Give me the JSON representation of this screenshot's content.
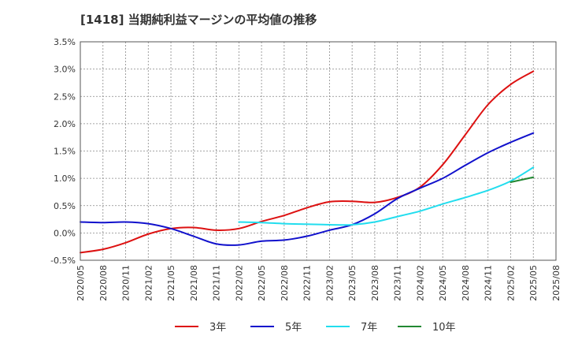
{
  "chart_data": {
    "type": "line",
    "title": "[1418]  当期純利益マージンの平均値の推移",
    "xlabel": "",
    "ylabel": "",
    "x_ticks": [
      "2020/05",
      "2020/08",
      "2020/11",
      "2021/02",
      "2021/05",
      "2021/08",
      "2021/11",
      "2022/02",
      "2022/05",
      "2022/08",
      "2022/11",
      "2023/02",
      "2023/05",
      "2023/08",
      "2023/11",
      "2024/02",
      "2024/05",
      "2024/08",
      "2024/11",
      "2025/02",
      "2025/05",
      "2025/08"
    ],
    "y_ticks": [
      "-0.5%",
      "0.0%",
      "0.5%",
      "1.0%",
      "1.5%",
      "2.0%",
      "2.5%",
      "3.0%",
      "3.5%"
    ],
    "ylim": [
      -0.5,
      3.5
    ],
    "y_unit": "%",
    "grid": true,
    "legend_position": "bottom",
    "series": [
      {
        "name": "3年",
        "color": "#dd1111",
        "points": [
          [
            "2020/05",
            -0.36
          ],
          [
            "2020/08",
            -0.3
          ],
          [
            "2020/11",
            -0.18
          ],
          [
            "2021/02",
            -0.02
          ],
          [
            "2021/05",
            0.08
          ],
          [
            "2021/08",
            0.1
          ],
          [
            "2021/11",
            0.05
          ],
          [
            "2022/02",
            0.08
          ],
          [
            "2022/05",
            0.21
          ],
          [
            "2022/08",
            0.32
          ],
          [
            "2022/11",
            0.46
          ],
          [
            "2023/02",
            0.57
          ],
          [
            "2023/05",
            0.58
          ],
          [
            "2023/08",
            0.56
          ],
          [
            "2023/11",
            0.65
          ],
          [
            "2024/02",
            0.84
          ],
          [
            "2024/05",
            1.25
          ],
          [
            "2024/08",
            1.8
          ],
          [
            "2024/11",
            2.35
          ],
          [
            "2025/02",
            2.72
          ],
          [
            "2025/05",
            2.96
          ]
        ]
      },
      {
        "name": "5年",
        "color": "#1111cc",
        "points": [
          [
            "2020/05",
            0.2
          ],
          [
            "2020/08",
            0.19
          ],
          [
            "2020/11",
            0.2
          ],
          [
            "2021/02",
            0.17
          ],
          [
            "2021/05",
            0.08
          ],
          [
            "2021/08",
            -0.06
          ],
          [
            "2021/11",
            -0.2
          ],
          [
            "2022/02",
            -0.22
          ],
          [
            "2022/05",
            -0.15
          ],
          [
            "2022/08",
            -0.13
          ],
          [
            "2022/11",
            -0.06
          ],
          [
            "2023/02",
            0.05
          ],
          [
            "2023/05",
            0.15
          ],
          [
            "2023/08",
            0.35
          ],
          [
            "2023/11",
            0.63
          ],
          [
            "2024/02",
            0.82
          ],
          [
            "2024/05",
            1.0
          ],
          [
            "2024/08",
            1.24
          ],
          [
            "2024/11",
            1.47
          ],
          [
            "2025/02",
            1.66
          ],
          [
            "2025/05",
            1.83
          ]
        ]
      },
      {
        "name": "7年",
        "color": "#22ddee",
        "points": [
          [
            "2022/02",
            0.2
          ],
          [
            "2022/05",
            0.19
          ],
          [
            "2022/08",
            0.17
          ],
          [
            "2022/11",
            0.16
          ],
          [
            "2023/02",
            0.15
          ],
          [
            "2023/05",
            0.15
          ],
          [
            "2023/08",
            0.2
          ],
          [
            "2023/11",
            0.3
          ],
          [
            "2024/02",
            0.4
          ],
          [
            "2024/05",
            0.53
          ],
          [
            "2024/08",
            0.65
          ],
          [
            "2024/11",
            0.78
          ],
          [
            "2025/02",
            0.95
          ],
          [
            "2025/05",
            1.2
          ]
        ]
      },
      {
        "name": "10年",
        "color": "#228833",
        "points": [
          [
            "2025/02",
            0.93
          ],
          [
            "2025/05",
            1.02
          ]
        ]
      }
    ]
  }
}
